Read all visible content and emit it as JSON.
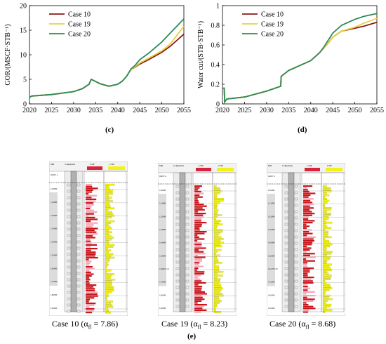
{
  "charts": [
    {
      "type": "line",
      "panel": "(c)",
      "ylabel": "GOR/(MSCF·STB⁻¹)",
      "xlim": [
        2020,
        2055
      ],
      "ylim": [
        0,
        20
      ],
      "xticks": [
        "2020",
        "2025",
        "2030",
        "2035",
        "2040",
        "2045",
        "2050",
        "2055"
      ],
      "yticks": [
        "0",
        "5",
        "10",
        "15",
        "20"
      ],
      "legend": "top-left",
      "grid": false,
      "series": [
        {
          "name": "Case 10",
          "color": "#8b1a1a",
          "x": [
            2020,
            2020.5,
            2025,
            2030,
            2032,
            2033.5,
            2034,
            2036,
            2038,
            2040,
            2041,
            2042,
            2043,
            2044,
            2045,
            2047,
            2050,
            2052,
            2055
          ],
          "y": [
            1.3,
            1.6,
            1.9,
            2.5,
            3.1,
            4.0,
            5.0,
            4.1,
            3.6,
            4.0,
            4.6,
            5.6,
            7.0,
            7.5,
            8.1,
            9.0,
            10.5,
            11.8,
            14.2
          ]
        },
        {
          "name": "Case 19",
          "color": "#e8d23a",
          "x": [
            2020,
            2020.5,
            2025,
            2030,
            2032,
            2033.5,
            2034,
            2036,
            2038,
            2040,
            2041,
            2042,
            2043,
            2044,
            2045,
            2047,
            2050,
            2052,
            2055
          ],
          "y": [
            1.3,
            1.6,
            1.9,
            2.5,
            3.1,
            4.0,
            5.0,
            4.1,
            3.6,
            4.0,
            4.6,
            5.6,
            7.0,
            7.6,
            8.3,
            9.3,
            10.8,
            12.3,
            15.8
          ]
        },
        {
          "name": "Case 20",
          "color": "#2e8b57",
          "x": [
            2020,
            2020.5,
            2025,
            2030,
            2032,
            2033.5,
            2034,
            2036,
            2038,
            2040,
            2041,
            2042,
            2043,
            2044,
            2045,
            2047,
            2050,
            2052,
            2055
          ],
          "y": [
            1.3,
            1.6,
            1.9,
            2.5,
            3.1,
            4.0,
            5.0,
            4.1,
            3.6,
            4.0,
            4.6,
            5.6,
            7.1,
            7.9,
            9.0,
            10.3,
            12.6,
            14.5,
            17.3
          ]
        }
      ]
    },
    {
      "type": "line",
      "panel": "(d)",
      "ylabel": "Water cut/(STB·STB⁻¹)",
      "xlim": [
        2020,
        2055
      ],
      "ylim": [
        0,
        1
      ],
      "xticks": [
        "2020",
        "2025",
        "2030",
        "2035",
        "2040",
        "2045",
        "2050",
        "2055"
      ],
      "yticks": [
        "0",
        "0.2",
        "0.4",
        "0.6",
        "0.8",
        "1"
      ],
      "legend": "top-left",
      "grid": false,
      "series": [
        {
          "name": "Case 10",
          "color": "#8b1a1a",
          "x": [
            2020,
            2020.4,
            2020.5,
            2021,
            2025,
            2030,
            2033.2,
            2033.3,
            2035,
            2040,
            2042,
            2043,
            2044,
            2045,
            2047,
            2050,
            2052,
            2055
          ],
          "y": [
            0.16,
            0.16,
            0.02,
            0.05,
            0.07,
            0.13,
            0.18,
            0.28,
            0.34,
            0.44,
            0.52,
            0.57,
            0.62,
            0.68,
            0.74,
            0.77,
            0.79,
            0.83
          ]
        },
        {
          "name": "Case 19",
          "color": "#e8d23a",
          "x": [
            2020,
            2020.4,
            2020.5,
            2021,
            2025,
            2030,
            2033.2,
            2033.3,
            2035,
            2040,
            2042,
            2043,
            2044,
            2045,
            2047,
            2050,
            2052,
            2055
          ],
          "y": [
            0.16,
            0.16,
            0.02,
            0.05,
            0.07,
            0.13,
            0.18,
            0.28,
            0.34,
            0.44,
            0.52,
            0.57,
            0.62,
            0.68,
            0.74,
            0.78,
            0.82,
            0.87
          ]
        },
        {
          "name": "Case 20",
          "color": "#2e8b57",
          "x": [
            2020,
            2020.4,
            2020.5,
            2021,
            2025,
            2030,
            2033.2,
            2033.3,
            2035,
            2040,
            2042,
            2043,
            2044,
            2045,
            2047,
            2050,
            2052,
            2055
          ],
          "y": [
            0.16,
            0.16,
            0.02,
            0.05,
            0.07,
            0.13,
            0.18,
            0.28,
            0.34,
            0.44,
            0.52,
            0.58,
            0.65,
            0.72,
            0.8,
            0.86,
            0.89,
            0.92
          ]
        }
      ]
    }
  ],
  "panel_e_label": "(e)",
  "logs": [
    {
      "caption": "Case 10 (α",
      "sub": "fl",
      "suffix": " = 7.86)",
      "top": "9,095.1",
      "depths": [
        "10,000",
        "11,000",
        "12,000",
        "13,000",
        "14,000",
        "15,000",
        "16,000",
        "17,000",
        "18,000",
        "19,000"
      ],
      "seed": 3
    },
    {
      "caption": "Case 19 (α",
      "sub": "fl",
      "suffix": " = 8.23)",
      "top": "8,897.2",
      "depths": [
        "10,000",
        "11,000",
        "12,000",
        "13,000",
        "14,000",
        "15,000",
        "16,091.14",
        "17,000",
        "18,000",
        "19,000"
      ],
      "seed": 7
    },
    {
      "caption": "Case 20 (α",
      "sub": "fl",
      "suffix": " = 8.68)",
      "top": "9,097.1",
      "depths": [
        "10,000",
        "11,000",
        "12,000",
        "13,000",
        "14,000",
        "15,000",
        "15,379.43",
        "17,000",
        "18,000",
        "19,000"
      ],
      "seed": 11
    }
  ],
  "log_header": {
    "md": "MD",
    "completion": "Completion",
    "csip1": "CSIP",
    "csip2": "CSIP"
  }
}
